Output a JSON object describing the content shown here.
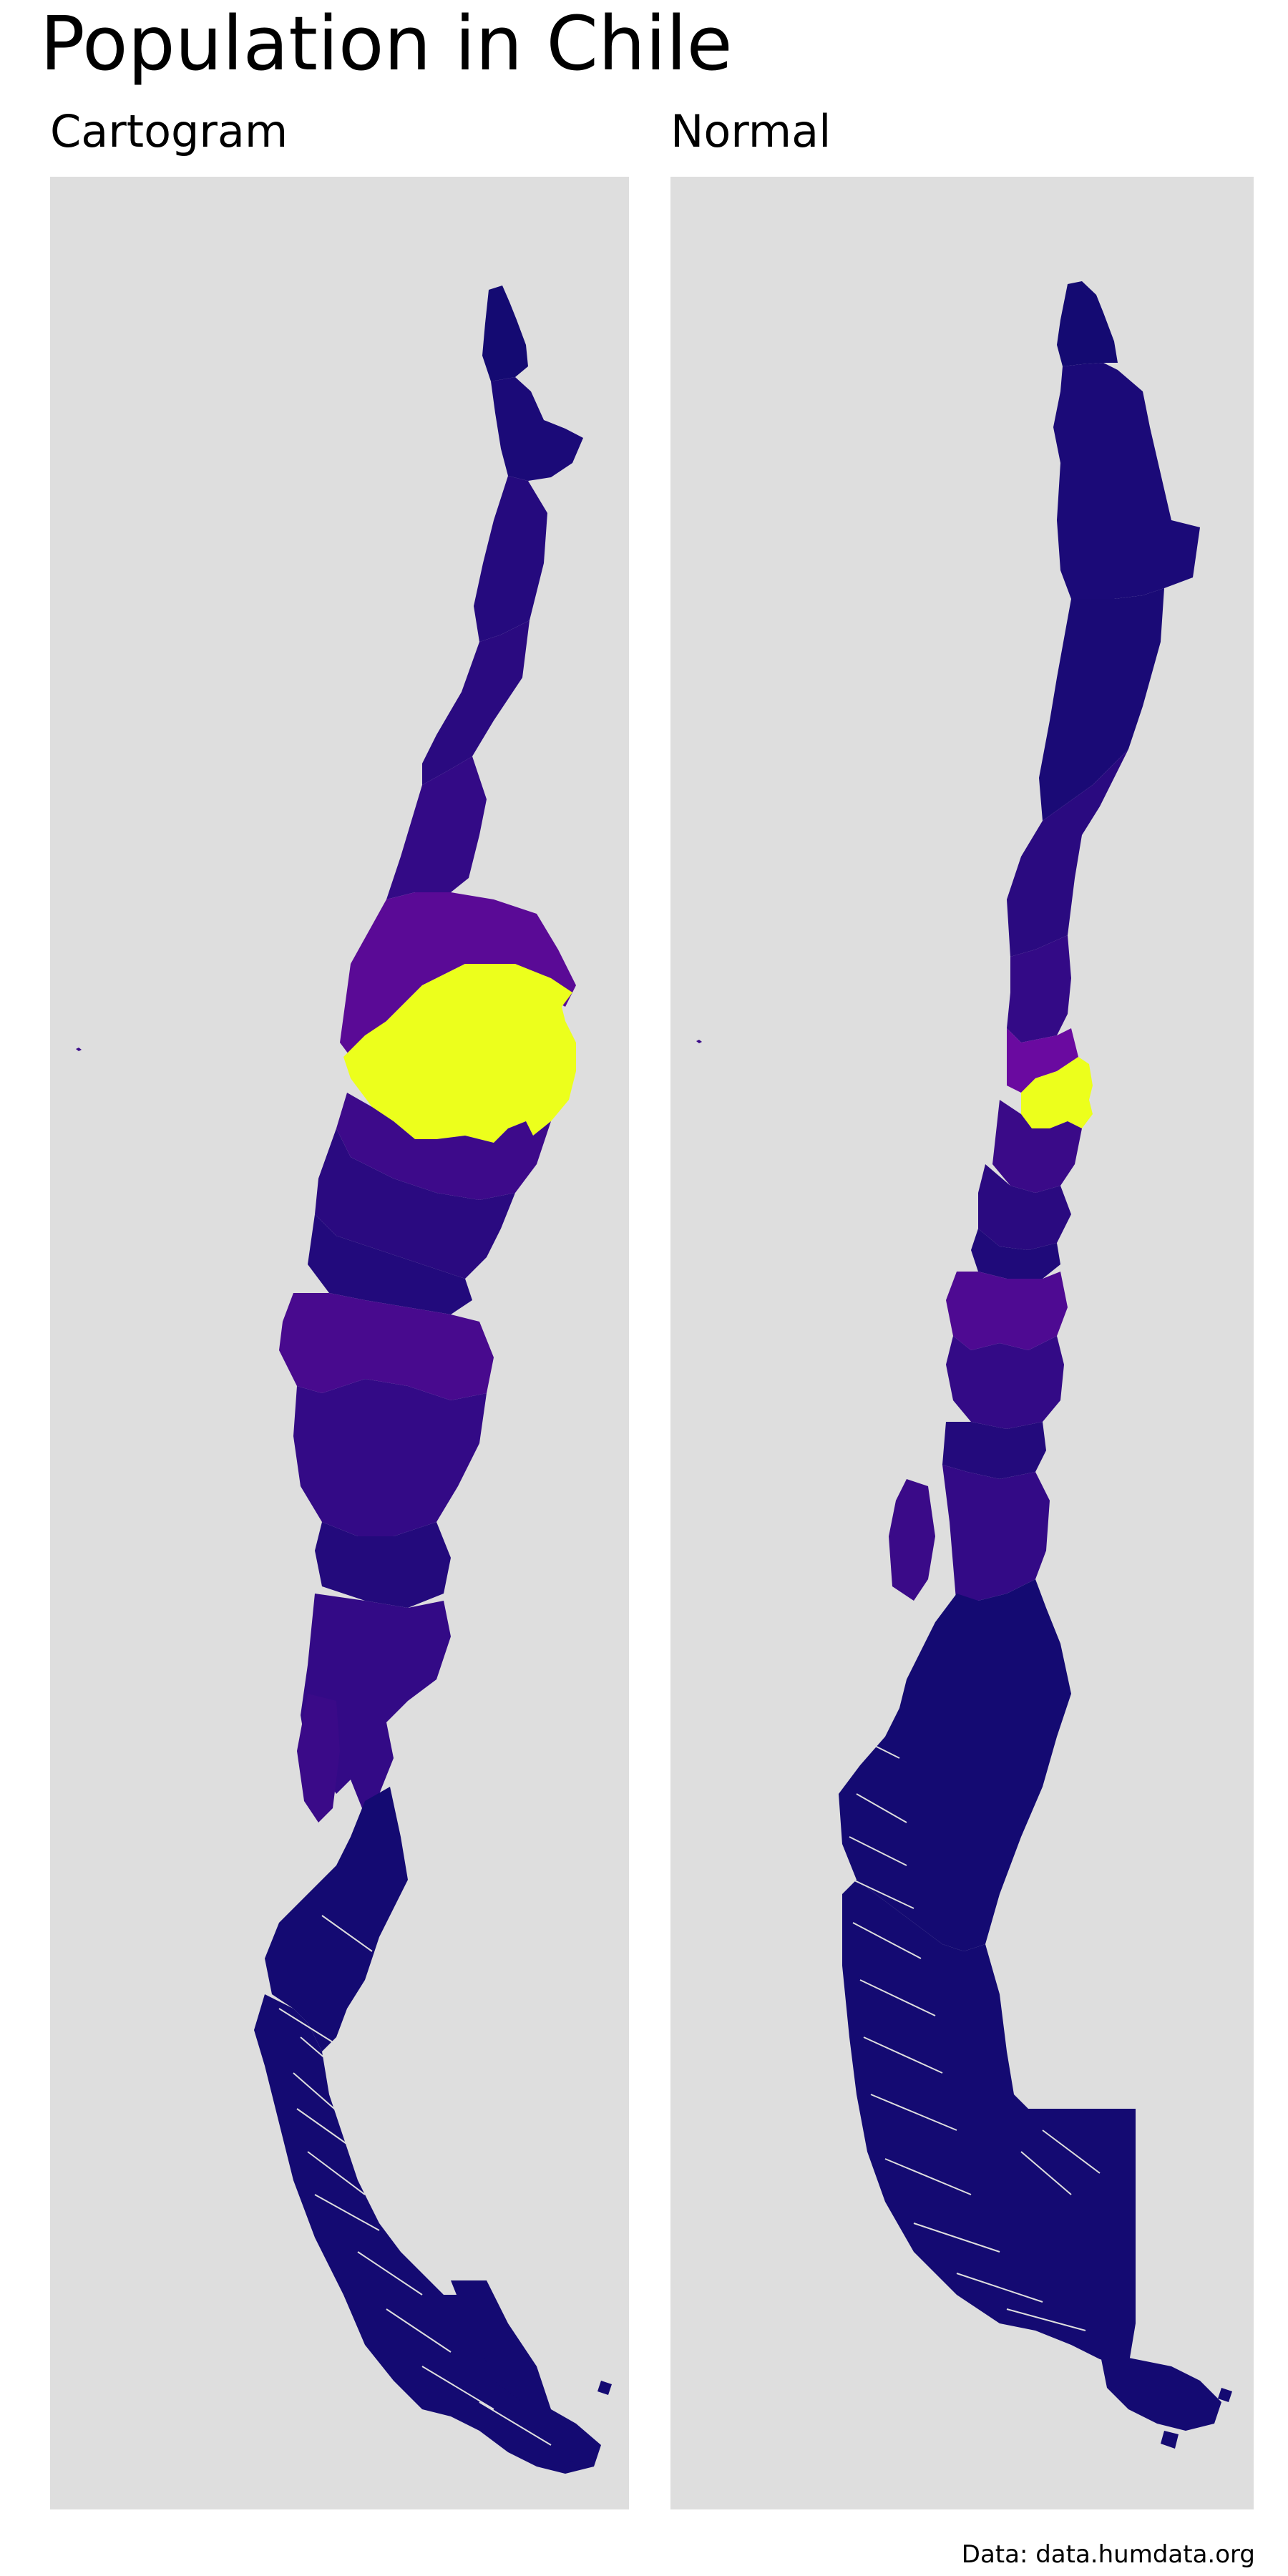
{
  "title": "Population in Chile",
  "panels": [
    {
      "id": "cartogram",
      "label": "Cartogram"
    },
    {
      "id": "normal",
      "label": "Normal"
    }
  ],
  "caption": "Data: data.humdata.org",
  "colors": {
    "background": "#ffffff",
    "panel_background": "#dedede",
    "low": "#140a72",
    "low_mid": "#2a0a80",
    "mid": "#420a8c",
    "mid_high": "#5a0a96",
    "high": "#ecff1c"
  },
  "color_scale": "viridis-plasma (low population dark blue/purple, highest population yellow)"
}
